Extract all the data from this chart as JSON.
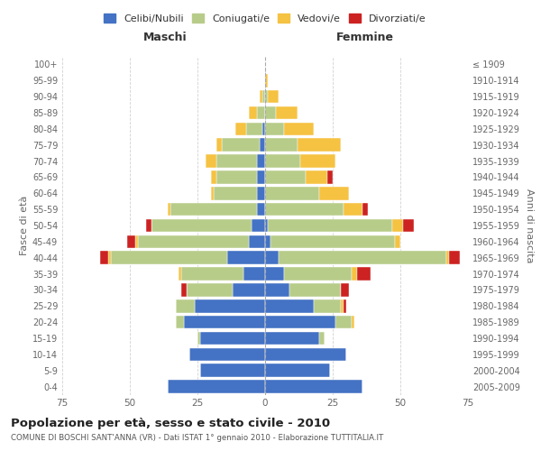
{
  "age_groups": [
    "0-4",
    "5-9",
    "10-14",
    "15-19",
    "20-24",
    "25-29",
    "30-34",
    "35-39",
    "40-44",
    "45-49",
    "50-54",
    "55-59",
    "60-64",
    "65-69",
    "70-74",
    "75-79",
    "80-84",
    "85-89",
    "90-94",
    "95-99",
    "100+"
  ],
  "birth_years": [
    "2005-2009",
    "2000-2004",
    "1995-1999",
    "1990-1994",
    "1985-1989",
    "1980-1984",
    "1975-1979",
    "1970-1974",
    "1965-1969",
    "1960-1964",
    "1955-1959",
    "1950-1954",
    "1945-1949",
    "1940-1944",
    "1935-1939",
    "1930-1934",
    "1925-1929",
    "1920-1924",
    "1915-1919",
    "1910-1914",
    "≤ 1909"
  ],
  "colors": {
    "celibe": "#4472c4",
    "coniugato": "#b8cc8a",
    "vedovo": "#f5c242",
    "divorziato": "#cc2222"
  },
  "males": {
    "celibe": [
      36,
      24,
      28,
      24,
      30,
      26,
      12,
      8,
      14,
      6,
      5,
      3,
      3,
      3,
      3,
      2,
      1,
      0,
      0,
      0,
      0
    ],
    "coniugato": [
      0,
      0,
      0,
      1,
      3,
      7,
      17,
      23,
      43,
      41,
      37,
      32,
      16,
      15,
      15,
      14,
      6,
      3,
      1,
      0,
      0
    ],
    "vedovo": [
      0,
      0,
      0,
      0,
      0,
      0,
      0,
      1,
      1,
      1,
      0,
      1,
      1,
      2,
      4,
      2,
      4,
      3,
      1,
      0,
      0
    ],
    "divorziato": [
      0,
      0,
      0,
      0,
      0,
      0,
      2,
      0,
      3,
      3,
      2,
      0,
      0,
      0,
      0,
      0,
      0,
      0,
      0,
      0,
      0
    ]
  },
  "females": {
    "celibe": [
      36,
      24,
      30,
      20,
      26,
      18,
      9,
      7,
      5,
      2,
      1,
      0,
      0,
      0,
      0,
      0,
      0,
      0,
      0,
      0,
      0
    ],
    "coniugato": [
      0,
      0,
      0,
      2,
      6,
      10,
      19,
      25,
      62,
      46,
      46,
      29,
      20,
      15,
      13,
      12,
      7,
      4,
      1,
      0,
      0
    ],
    "vedovo": [
      0,
      0,
      0,
      0,
      1,
      1,
      0,
      2,
      1,
      2,
      4,
      7,
      11,
      8,
      13,
      16,
      11,
      8,
      4,
      1,
      0
    ],
    "divorziato": [
      0,
      0,
      0,
      0,
      0,
      1,
      3,
      5,
      4,
      0,
      4,
      2,
      0,
      2,
      0,
      0,
      0,
      0,
      0,
      0,
      0
    ]
  },
  "title_main": "Popolazione per età, sesso e stato civile - 2010",
  "title_sub": "COMUNE DI BOSCHI SANT'ANNA (VR) - Dati ISTAT 1° gennaio 2010 - Elaborazione TUTTITALIA.IT",
  "xlabel_left": "Maschi",
  "xlabel_right": "Femmine",
  "ylabel_left": "Fasce di età",
  "ylabel_right": "Anni di nascita",
  "xlim": 75,
  "legend_labels": [
    "Celibi/Nubili",
    "Coniugati/e",
    "Vedovi/e",
    "Divorziati/e"
  ],
  "background_color": "#ffffff",
  "grid_color": "#cccccc"
}
